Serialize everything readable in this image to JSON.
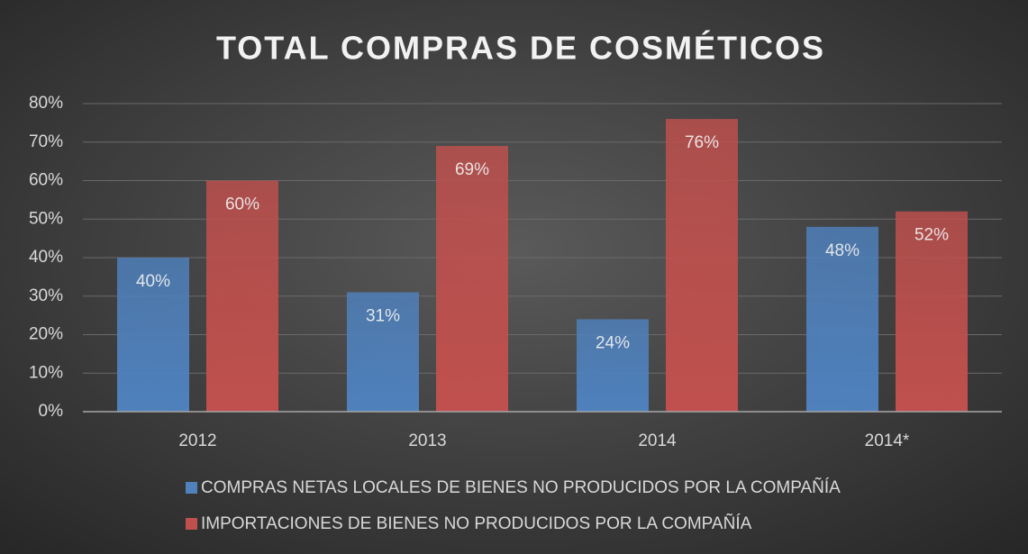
{
  "chart_data": {
    "type": "bar",
    "title": "TOTAL COMPRAS DE COSMÉTICOS",
    "categories": [
      "2012",
      "2013",
      "2014",
      "2014*"
    ],
    "series": [
      {
        "name": "COMPRAS NETAS LOCALES DE BIENES NO PRODUCIDOS POR LA COMPAÑÍA",
        "color": "#4f81bd",
        "values": [
          40,
          31,
          24,
          48
        ],
        "value_labels": [
          "40%",
          "31%",
          "24%",
          "48%"
        ]
      },
      {
        "name": "IMPORTACIONES DE BIENES NO PRODUCIDOS POR LA COMPAÑÍA",
        "color": "#c0504d",
        "values": [
          60,
          69,
          76,
          52
        ],
        "value_labels": [
          "60%",
          "69%",
          "76%",
          "52%"
        ]
      }
    ],
    "ylim": [
      0,
      80
    ],
    "yticks": [
      {
        "value": 0,
        "label": "0%"
      },
      {
        "value": 10,
        "label": "10%"
      },
      {
        "value": 20,
        "label": "20%"
      },
      {
        "value": 30,
        "label": "30%"
      },
      {
        "value": 40,
        "label": "40%"
      },
      {
        "value": 50,
        "label": "50%"
      },
      {
        "value": 60,
        "label": "60%"
      },
      {
        "value": 70,
        "label": "70%"
      },
      {
        "value": 80,
        "label": "80%"
      }
    ],
    "grid": true,
    "legend": "bottom"
  }
}
